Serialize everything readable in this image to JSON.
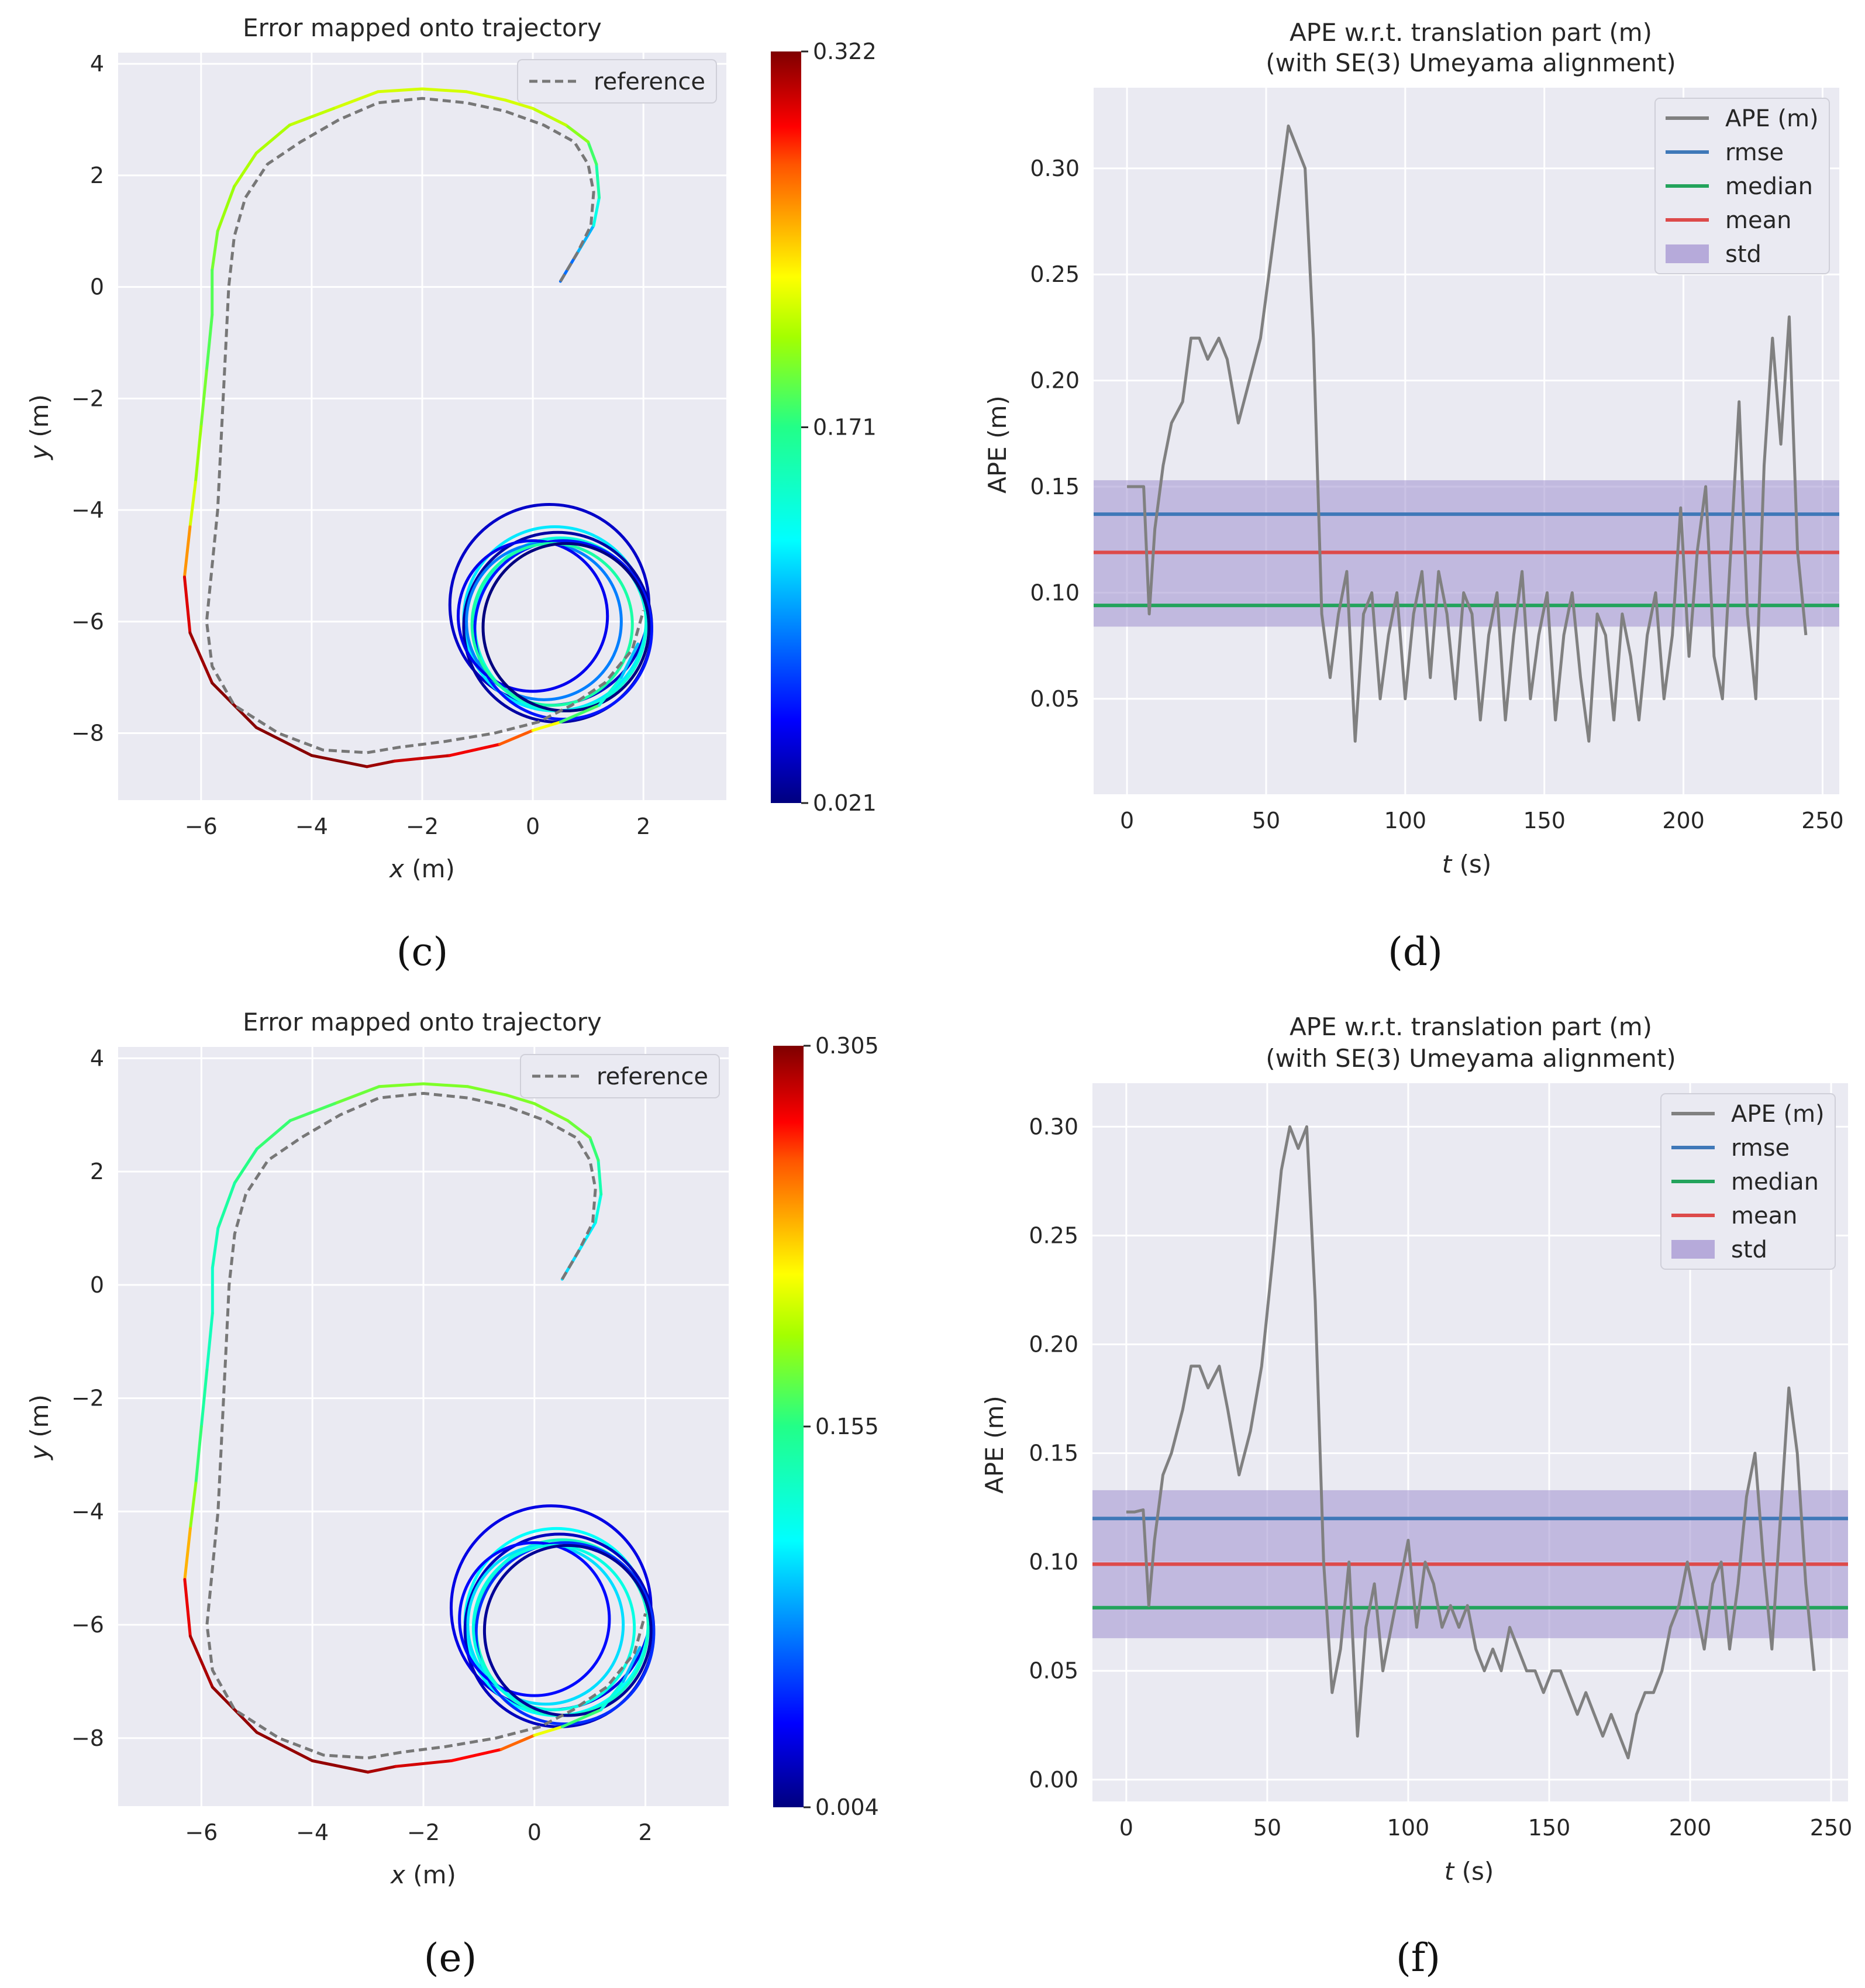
{
  "chart_data": [
    {
      "panel": "c",
      "panel_label": "(c)",
      "type": "line",
      "title": "Error mapped onto trajectory",
      "xlabel_var": "x",
      "xlabel_unit": " (m)",
      "ylabel_var": "y",
      "ylabel_unit": " (m)",
      "xlim": [
        -7.5,
        3.5
      ],
      "ylim": [
        -9.2,
        4.2
      ],
      "xticks": [
        -6,
        -4,
        -2,
        0,
        2
      ],
      "yticks": [
        4,
        2,
        0,
        -2,
        -4,
        -6,
        -8
      ],
      "legend": [
        "reference"
      ],
      "colorbar": {
        "min": 0.021,
        "max": 0.322,
        "labels": [
          "0.322",
          "0.171",
          "0.021"
        ]
      },
      "trajectory": {
        "x": [
          0.5,
          0.8,
          1.1,
          1.2,
          1.15,
          1.0,
          0.6,
          0.0,
          -0.5,
          -1.2,
          -2.0,
          -2.8,
          -3.6,
          -4.4,
          -5.0,
          -5.4,
          -5.7,
          -5.8,
          -5.8,
          -5.9,
          -6.0,
          -6.1,
          -6.2,
          -6.3,
          -6.2,
          -5.8,
          -5.0,
          -4.0,
          -3.0,
          -2.5,
          -1.5,
          -0.6,
          0.0,
          0.5,
          1.2,
          1.6,
          1.9
        ],
        "y": [
          0.1,
          0.6,
          1.1,
          1.6,
          2.2,
          2.6,
          2.9,
          3.2,
          3.35,
          3.5,
          3.55,
          3.5,
          3.2,
          2.9,
          2.4,
          1.8,
          1.0,
          0.3,
          -0.5,
          -1.5,
          -2.5,
          -3.5,
          -4.3,
          -5.2,
          -6.2,
          -7.1,
          -7.9,
          -8.4,
          -8.6,
          -8.5,
          -8.4,
          -8.2,
          -7.95,
          -7.8,
          -7.5,
          -7.0,
          -6.4
        ],
        "error": [
          0.08,
          0.09,
          0.12,
          0.15,
          0.17,
          0.19,
          0.21,
          0.22,
          0.22,
          0.22,
          0.22,
          0.22,
          0.22,
          0.21,
          0.21,
          0.21,
          0.2,
          0.19,
          0.18,
          0.19,
          0.2,
          0.21,
          0.23,
          0.29,
          0.31,
          0.32,
          0.32,
          0.32,
          0.32,
          0.31,
          0.3,
          0.29,
          0.26,
          0.2,
          0.16,
          0.12,
          0.1
        ]
      },
      "reference": {
        "x": [
          0.5,
          0.8,
          1.05,
          1.1,
          1.0,
          0.75,
          0.2,
          -0.5,
          -1.2,
          -2.0,
          -2.8,
          -3.5,
          -4.2,
          -4.8,
          -5.2,
          -5.4,
          -5.5,
          -5.55,
          -5.6,
          -5.65,
          -5.7,
          -5.8,
          -5.9,
          -5.8,
          -5.4,
          -4.6,
          -3.8,
          -3.0,
          -2.4,
          -1.6,
          -0.7,
          0.1,
          0.7,
          1.3,
          1.8,
          2.0
        ],
        "y": [
          0.1,
          0.6,
          1.1,
          1.7,
          2.2,
          2.6,
          2.9,
          3.15,
          3.3,
          3.38,
          3.3,
          3.0,
          2.6,
          2.2,
          1.6,
          0.9,
          0.0,
          -1.0,
          -2.0,
          -3.0,
          -4.0,
          -5.0,
          -6.0,
          -6.8,
          -7.5,
          -8.0,
          -8.3,
          -8.35,
          -8.25,
          -8.15,
          -8.0,
          -7.8,
          -7.5,
          -7.1,
          -6.5,
          -5.8
        ]
      },
      "circles": [
        {
          "cx": 0.3,
          "cy": -5.7,
          "r": 1.8,
          "error": 0.04
        },
        {
          "cx": 0.4,
          "cy": -5.95,
          "r": 1.65,
          "error": 0.12
        },
        {
          "cx": 0.45,
          "cy": -6.1,
          "r": 1.7,
          "error": 0.03
        },
        {
          "cx": 0.5,
          "cy": -6.05,
          "r": 1.55,
          "error": 0.14
        },
        {
          "cx": 0.55,
          "cy": -6.15,
          "r": 1.6,
          "error": 0.06
        },
        {
          "cx": 0.2,
          "cy": -6.0,
          "r": 1.4,
          "error": 0.09
        },
        {
          "cx": 0.0,
          "cy": -5.9,
          "r": 1.35,
          "error": 0.05
        },
        {
          "cx": 0.35,
          "cy": -6.05,
          "r": 1.45,
          "error": 0.16
        },
        {
          "cx": 0.6,
          "cy": -6.1,
          "r": 1.5,
          "error": 0.02
        }
      ]
    },
    {
      "panel": "d",
      "panel_label": "(d)",
      "type": "line",
      "title_lines": [
        "APE w.r.t. translation part (m)",
        "(with SE(3) Umeyama alignment)"
      ],
      "xlabel_var": "t",
      "xlabel_unit": " (s)",
      "ylabel": "APE (m)",
      "xlim": [
        -12,
        256
      ],
      "ylim": [
        0.005,
        0.338
      ],
      "xticks": [
        0,
        50,
        100,
        150,
        200,
        250
      ],
      "yticks": [
        0.05,
        0.1,
        0.15,
        0.2,
        0.25,
        0.3
      ],
      "ytick_labels": [
        "0.05",
        "0.10",
        "0.15",
        "0.20",
        "0.25",
        "0.30"
      ],
      "legend": [
        "APE (m)",
        "rmse",
        "median",
        "mean",
        "std"
      ],
      "stats": {
        "rmse": 0.137,
        "median": 0.094,
        "mean": 0.119,
        "std_low": 0.084,
        "std_high": 0.153
      },
      "series": {
        "t": [
          0,
          3,
          6,
          8,
          10,
          13,
          16,
          20,
          23,
          26,
          29,
          33,
          36,
          40,
          44,
          48,
          52,
          55,
          58,
          61,
          64,
          67,
          70,
          73,
          76,
          79,
          82,
          85,
          88,
          91,
          94,
          97,
          100,
          103,
          106,
          109,
          112,
          115,
          118,
          121,
          124,
          127,
          130,
          133,
          136,
          139,
          142,
          145,
          148,
          151,
          154,
          157,
          160,
          163,
          166,
          169,
          172,
          175,
          178,
          181,
          184,
          187,
          190,
          193,
          196,
          199,
          202,
          205,
          208,
          211,
          214,
          217,
          220,
          223,
          226,
          229,
          232,
          235,
          238,
          241,
          244
        ],
        "values": [
          0.15,
          0.15,
          0.15,
          0.09,
          0.13,
          0.16,
          0.18,
          0.19,
          0.22,
          0.22,
          0.21,
          0.22,
          0.21,
          0.18,
          0.2,
          0.22,
          0.26,
          0.29,
          0.32,
          0.31,
          0.3,
          0.22,
          0.09,
          0.06,
          0.09,
          0.11,
          0.03,
          0.09,
          0.1,
          0.05,
          0.08,
          0.1,
          0.05,
          0.09,
          0.11,
          0.06,
          0.11,
          0.09,
          0.05,
          0.1,
          0.09,
          0.04,
          0.08,
          0.1,
          0.04,
          0.08,
          0.11,
          0.05,
          0.08,
          0.1,
          0.04,
          0.08,
          0.1,
          0.06,
          0.03,
          0.09,
          0.08,
          0.04,
          0.09,
          0.07,
          0.04,
          0.08,
          0.1,
          0.05,
          0.08,
          0.14,
          0.07,
          0.12,
          0.15,
          0.07,
          0.05,
          0.12,
          0.19,
          0.09,
          0.05,
          0.16,
          0.22,
          0.17,
          0.23,
          0.12,
          0.08
        ]
      }
    },
    {
      "panel": "e",
      "panel_label": "(e)",
      "type": "line",
      "title": "Error mapped onto trajectory",
      "xlabel_var": "x",
      "xlabel_unit": " (m)",
      "ylabel_var": "y",
      "ylabel_unit": " (m)",
      "xlim": [
        -7.5,
        3.5
      ],
      "ylim": [
        -9.2,
        4.2
      ],
      "xticks": [
        -6,
        -4,
        -2,
        0,
        2
      ],
      "yticks": [
        4,
        2,
        0,
        -2,
        -4,
        -6,
        -8
      ],
      "legend": [
        "reference"
      ],
      "colorbar": {
        "min": 0.004,
        "max": 0.305,
        "labels": [
          "0.305",
          "0.155",
          "0.004"
        ]
      },
      "trajectory": {
        "x": [
          0.5,
          0.8,
          1.1,
          1.2,
          1.15,
          1.0,
          0.6,
          0.0,
          -0.5,
          -1.2,
          -2.0,
          -2.8,
          -3.6,
          -4.4,
          -5.0,
          -5.4,
          -5.7,
          -5.8,
          -5.8,
          -5.9,
          -6.0,
          -6.1,
          -6.2,
          -6.3,
          -6.2,
          -5.8,
          -5.0,
          -4.0,
          -3.0,
          -2.5,
          -1.5,
          -0.6,
          0.0,
          0.5,
          1.2,
          1.6,
          1.9
        ],
        "y": [
          0.1,
          0.6,
          1.1,
          1.6,
          2.2,
          2.6,
          2.9,
          3.2,
          3.35,
          3.5,
          3.55,
          3.5,
          3.2,
          2.9,
          2.4,
          1.8,
          1.0,
          0.3,
          -0.5,
          -1.5,
          -2.5,
          -3.5,
          -4.3,
          -5.2,
          -6.2,
          -7.1,
          -7.9,
          -8.4,
          -8.6,
          -8.5,
          -8.4,
          -8.2,
          -7.95,
          -7.8,
          -7.5,
          -7.0,
          -6.4
        ],
        "error": [
          0.1,
          0.1,
          0.11,
          0.13,
          0.15,
          0.17,
          0.18,
          0.18,
          0.18,
          0.18,
          0.18,
          0.18,
          0.17,
          0.16,
          0.16,
          0.15,
          0.14,
          0.13,
          0.13,
          0.14,
          0.15,
          0.17,
          0.2,
          0.27,
          0.29,
          0.3,
          0.3,
          0.3,
          0.3,
          0.29,
          0.28,
          0.27,
          0.24,
          0.18,
          0.14,
          0.1,
          0.08
        ]
      },
      "reference": {
        "x": [
          0.5,
          0.8,
          1.05,
          1.1,
          1.0,
          0.75,
          0.2,
          -0.5,
          -1.2,
          -2.0,
          -2.8,
          -3.5,
          -4.2,
          -4.8,
          -5.2,
          -5.4,
          -5.5,
          -5.55,
          -5.6,
          -5.65,
          -5.7,
          -5.8,
          -5.9,
          -5.8,
          -5.4,
          -4.6,
          -3.8,
          -3.0,
          -2.4,
          -1.6,
          -0.7,
          0.1,
          0.7,
          1.3,
          1.8,
          2.0
        ],
        "y": [
          0.1,
          0.6,
          1.1,
          1.7,
          2.2,
          2.6,
          2.9,
          3.15,
          3.3,
          3.38,
          3.3,
          3.0,
          2.6,
          2.2,
          1.6,
          0.9,
          0.0,
          -1.0,
          -2.0,
          -3.0,
          -4.0,
          -5.0,
          -6.0,
          -6.8,
          -7.5,
          -8.0,
          -8.3,
          -8.35,
          -8.25,
          -8.15,
          -8.0,
          -7.8,
          -7.5,
          -7.1,
          -6.5,
          -5.8
        ]
      },
      "circles": [
        {
          "cx": 0.3,
          "cy": -5.7,
          "r": 1.8,
          "error": 0.03
        },
        {
          "cx": 0.4,
          "cy": -5.95,
          "r": 1.65,
          "error": 0.11
        },
        {
          "cx": 0.45,
          "cy": -6.1,
          "r": 1.7,
          "error": 0.02
        },
        {
          "cx": 0.5,
          "cy": -6.05,
          "r": 1.55,
          "error": 0.13
        },
        {
          "cx": 0.55,
          "cy": -6.15,
          "r": 1.6,
          "error": 0.05
        },
        {
          "cx": 0.2,
          "cy": -6.0,
          "r": 1.4,
          "error": 0.1
        },
        {
          "cx": 0.0,
          "cy": -5.9,
          "r": 1.35,
          "error": 0.04
        },
        {
          "cx": 0.35,
          "cy": -6.05,
          "r": 1.45,
          "error": 0.12
        },
        {
          "cx": 0.6,
          "cy": -6.1,
          "r": 1.5,
          "error": 0.01
        }
      ]
    },
    {
      "panel": "f",
      "panel_label": "(f)",
      "type": "line",
      "title_lines": [
        "APE w.r.t. translation part (m)",
        "(with SE(3) Umeyama alignment)"
      ],
      "xlabel_var": "t",
      "xlabel_unit": " (s)",
      "ylabel": "APE (m)",
      "xlim": [
        -12,
        256
      ],
      "ylim": [
        -0.01,
        0.32
      ],
      "xticks": [
        0,
        50,
        100,
        150,
        200,
        250
      ],
      "yticks": [
        0.0,
        0.05,
        0.1,
        0.15,
        0.2,
        0.25,
        0.3
      ],
      "ytick_labels": [
        "0.00",
        "0.05",
        "0.10",
        "0.15",
        "0.20",
        "0.25",
        "0.30"
      ],
      "legend": [
        "APE (m)",
        "rmse",
        "median",
        "mean",
        "std"
      ],
      "stats": {
        "rmse": 0.12,
        "median": 0.079,
        "mean": 0.099,
        "std_low": 0.065,
        "std_high": 0.133
      },
      "series": {
        "t": [
          0,
          3,
          6,
          8,
          10,
          13,
          16,
          20,
          23,
          26,
          29,
          33,
          36,
          40,
          44,
          48,
          52,
          55,
          58,
          61,
          64,
          67,
          70,
          73,
          76,
          79,
          82,
          85,
          88,
          91,
          94,
          97,
          100,
          103,
          106,
          109,
          112,
          115,
          118,
          121,
          124,
          127,
          130,
          133,
          136,
          139,
          142,
          145,
          148,
          151,
          154,
          157,
          160,
          163,
          166,
          169,
          172,
          175,
          178,
          181,
          184,
          187,
          190,
          193,
          196,
          199,
          202,
          205,
          208,
          211,
          214,
          217,
          220,
          223,
          226,
          229,
          232,
          235,
          238,
          241,
          244
        ],
        "values": [
          0.123,
          0.123,
          0.124,
          0.08,
          0.11,
          0.14,
          0.15,
          0.17,
          0.19,
          0.19,
          0.18,
          0.19,
          0.17,
          0.14,
          0.16,
          0.19,
          0.24,
          0.28,
          0.3,
          0.29,
          0.3,
          0.22,
          0.1,
          0.04,
          0.06,
          0.1,
          0.02,
          0.07,
          0.09,
          0.05,
          0.07,
          0.09,
          0.11,
          0.07,
          0.1,
          0.09,
          0.07,
          0.08,
          0.07,
          0.08,
          0.06,
          0.05,
          0.06,
          0.05,
          0.07,
          0.06,
          0.05,
          0.05,
          0.04,
          0.05,
          0.05,
          0.04,
          0.03,
          0.04,
          0.03,
          0.02,
          0.03,
          0.02,
          0.01,
          0.03,
          0.04,
          0.04,
          0.05,
          0.07,
          0.08,
          0.1,
          0.08,
          0.06,
          0.09,
          0.1,
          0.06,
          0.09,
          0.13,
          0.15,
          0.1,
          0.06,
          0.12,
          0.18,
          0.15,
          0.09,
          0.05
        ]
      }
    }
  ]
}
